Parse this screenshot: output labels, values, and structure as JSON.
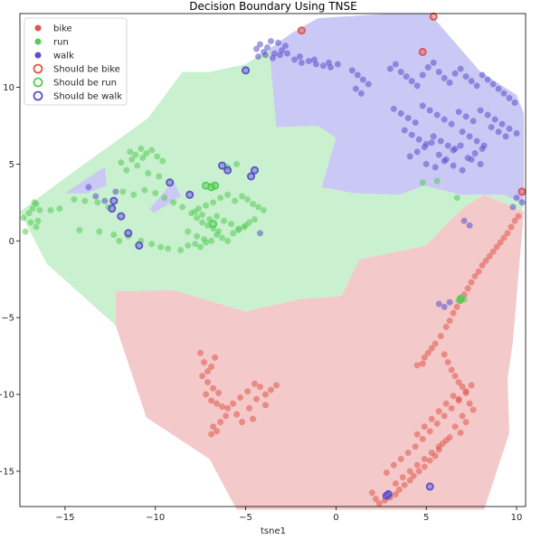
{
  "chart_data": {
    "type": "scatter",
    "title": "Decision Boundary Using TNSE",
    "xlabel": "tsne1",
    "ylabel": "",
    "xlim": [
      -17.5,
      10.5
    ],
    "ylim": [
      -17.3,
      14.8
    ],
    "x_ticks": [
      -15,
      -10,
      -5,
      0,
      5,
      10
    ],
    "y_ticks": [
      -15,
      -10,
      -5,
      0,
      5,
      10
    ],
    "x_tick_labels": [
      "−15",
      "−10",
      "−5",
      "0",
      "5",
      "10"
    ],
    "y_tick_labels": [
      "−15",
      "−10",
      "−5",
      "0",
      "5",
      "10"
    ],
    "legend_position": "top-left",
    "colors": {
      "bike": "#e0554d",
      "run": "#55cc55",
      "walk": "#5a50cc"
    },
    "regions": [
      {
        "class": "bike",
        "color": "#f4c9c9",
        "polygon": [
          [
            -12.2,
            -3.3
          ],
          [
            -9,
            -3.2
          ],
          [
            -5,
            -4.6
          ],
          [
            -2,
            -3.8
          ],
          [
            0.3,
            -3.6
          ],
          [
            1.3,
            -1.2
          ],
          [
            5,
            -0.3
          ],
          [
            6.2,
            1.2
          ],
          [
            7.2,
            2.3
          ],
          [
            8.2,
            3
          ],
          [
            9.6,
            2.3
          ],
          [
            10.4,
            1.9
          ],
          [
            9.8,
            -6.5
          ],
          [
            9.5,
            -9
          ],
          [
            9.6,
            -12.5
          ],
          [
            8.2,
            -17.5
          ],
          [
            -5.5,
            -17.5
          ],
          [
            -7,
            -14.2
          ],
          [
            -10.5,
            -11.5
          ],
          [
            -12.2,
            -5.5
          ]
        ]
      },
      {
        "class": "run",
        "color": "#c9f0cf",
        "polygon": [
          [
            -17.5,
            1.9
          ],
          [
            -15,
            4.1
          ],
          [
            -10.4,
            8
          ],
          [
            -8.5,
            11
          ],
          [
            -7,
            11
          ],
          [
            -5,
            11.5
          ],
          [
            -3.7,
            12.5
          ],
          [
            -3.3,
            7.4
          ],
          [
            -1,
            7.5
          ],
          [
            0,
            6.7
          ],
          [
            -0.8,
            3.5
          ],
          [
            1,
            3.1
          ],
          [
            3.5,
            3
          ],
          [
            4.9,
            3.6
          ],
          [
            6.9,
            3
          ],
          [
            9.3,
            3
          ],
          [
            10.4,
            2.4
          ],
          [
            10.3,
            1.9
          ],
          [
            9.6,
            2.3
          ],
          [
            8.2,
            3
          ],
          [
            7.2,
            2.3
          ],
          [
            6.2,
            1.2
          ],
          [
            5,
            -0.3
          ],
          [
            1.3,
            -1.2
          ],
          [
            0.3,
            -3.6
          ],
          [
            -2,
            -3.8
          ],
          [
            -5,
            -4.6
          ],
          [
            -9,
            -3.2
          ],
          [
            -12.2,
            -3.3
          ],
          [
            -12.2,
            -5.5
          ],
          [
            -16,
            -1.5
          ]
        ]
      },
      {
        "class": "walk",
        "color": "#cac8f4",
        "polygon": [
          [
            -3.7,
            12.5
          ],
          [
            -2.5,
            13.5
          ],
          [
            -1,
            14.5
          ],
          [
            3,
            14.8
          ],
          [
            5.2,
            14.8
          ],
          [
            8,
            11
          ],
          [
            10,
            9.5
          ],
          [
            10.4,
            8.3
          ],
          [
            10.4,
            2.4
          ],
          [
            9.3,
            3
          ],
          [
            6.9,
            3
          ],
          [
            4.9,
            3.6
          ],
          [
            3.5,
            3
          ],
          [
            1,
            3.1
          ],
          [
            -0.8,
            3.5
          ],
          [
            0,
            6.7
          ],
          [
            -1,
            7.5
          ],
          [
            -3.3,
            7.4
          ]
        ]
      },
      {
        "class": "walk",
        "color": "#cac8f4",
        "polygon": [
          [
            -15,
            3.1
          ],
          [
            -12.8,
            4.8
          ],
          [
            -12.7,
            3.6
          ],
          [
            -13.8,
            3.1
          ]
        ]
      },
      {
        "class": "walk",
        "color": "#cac8f4",
        "polygon": [
          [
            -10.3,
            2.1
          ],
          [
            -9,
            3.9
          ],
          [
            -8.6,
            2.9
          ],
          [
            -10.1,
            1.8
          ]
        ]
      }
    ],
    "series": [
      {
        "name": "bike",
        "color": "#e0554d",
        "x": [
          -7.5,
          -7.3,
          -7.1,
          -6.9,
          -6.7,
          -7.4,
          -7.1,
          -6.8,
          -6.5,
          -6.9,
          -7.2,
          -6.6,
          -6.3,
          -6.0,
          -5.7,
          -5.3,
          -4.9,
          -4.5,
          -4.2,
          -3.9,
          -3.6,
          -3.3,
          -4.8,
          -5.5,
          -5.2,
          -4.6,
          -6.1,
          -6.4,
          -6.8,
          -6.6,
          -6.9,
          -4.4,
          -3.9,
          4.5,
          4.8,
          4.9,
          5.1,
          5.3,
          5.5,
          5.8,
          6.1,
          6.3,
          6.5,
          6.7,
          6.9,
          7.1,
          7.3,
          7.5,
          7.7,
          7.9,
          8.1,
          8.3,
          8.5,
          8.7,
          8.9,
          9.1,
          9.3,
          9.5,
          9.7,
          9.9,
          10.1,
          6.0,
          6.2,
          6.4,
          6.6,
          6.8,
          7.0,
          7.2,
          6.8,
          7.4,
          7.6,
          7.0,
          7.2,
          6.6,
          6.9,
          6.3,
          5.9,
          5.7,
          5.5,
          5.2,
          4.9,
          4.6,
          4.3,
          4.1,
          3.8,
          3.5,
          3.3,
          3.0,
          2.7,
          2.4,
          2.2,
          2.0,
          2.8,
          3.2,
          3.6,
          4.0,
          4.4,
          4.8,
          5.2,
          5.6,
          6.0,
          6.4,
          6.8,
          7.2,
          7.5,
          6.5,
          6.1,
          5.7,
          5.3,
          4.9,
          4.5,
          3.3,
          3.7,
          4.1,
          4.5,
          4.9,
          5.3,
          5.7,
          6.1
        ],
        "y": [
          -7.3,
          -7.9,
          -8.5,
          -8.2,
          -7.6,
          -8.8,
          -9.2,
          -9.6,
          -9.9,
          -10.4,
          -10.0,
          -10.6,
          -10.8,
          -10.9,
          -10.6,
          -10.2,
          -9.8,
          -9.3,
          -9.5,
          -10.0,
          -9.7,
          -9.4,
          -10.9,
          -11.3,
          -11.8,
          -11.6,
          -11.4,
          -11.8,
          -12.1,
          -12.4,
          -12.6,
          -10.3,
          -10.7,
          -8.1,
          -8.0,
          -7.6,
          -7.3,
          -7.0,
          -6.7,
          -6.2,
          -5.6,
          -5.2,
          -4.7,
          -4.3,
          -3.9,
          -3.5,
          -3.1,
          -2.7,
          -2.3,
          -2.0,
          -1.6,
          -1.3,
          -1.0,
          -0.7,
          -0.4,
          -0.1,
          0.2,
          0.5,
          0.9,
          1.3,
          1.6,
          -7.4,
          -7.9,
          -8.4,
          -8.8,
          -9.2,
          -9.5,
          -9.9,
          -10.3,
          -10.6,
          -11.0,
          -11.4,
          -11.8,
          -12.1,
          -12.5,
          -12.8,
          -13.2,
          -13.6,
          -14.0,
          -14.3,
          -14.7,
          -15.0,
          -15.3,
          -15.6,
          -15.9,
          -16.2,
          -16.5,
          -16.7,
          -16.9,
          -17.1,
          -16.8,
          -16.4,
          -15.1,
          -14.6,
          -14.2,
          -13.8,
          -13.4,
          -12.9,
          -12.4,
          -11.9,
          -11.4,
          -10.9,
          -10.4,
          -9.8,
          -9.4,
          -10.1,
          -10.6,
          -11.1,
          -11.6,
          -12.1,
          -12.6,
          -15.8,
          -15.4,
          -15.0,
          -14.6,
          -14.2,
          -13.8,
          -13.4,
          -13.0
        ]
      },
      {
        "name": "run",
        "color": "#55cc55",
        "x": [
          -17.3,
          -17.0,
          -16.8,
          -16.6,
          -16.4,
          -16.9,
          -16.6,
          -17.2,
          -16.5,
          -16.7,
          -15.8,
          -15.3,
          -14.5,
          -13.9,
          -13.2,
          -12.6,
          -11.9,
          -11.3,
          -10.7,
          -11.4,
          -11.1,
          -10.8,
          -10.5,
          -10.2,
          -9.9,
          -9.6,
          -11.6,
          -11.0,
          -10.4,
          -9.8,
          -11.8,
          -11.2,
          -10.6,
          -10.0,
          -9.5,
          -9.0,
          -8.5,
          -8.0,
          -7.7,
          -7.4,
          -7.1,
          -6.8,
          -6.5,
          -7.7,
          -7.3,
          -6.9,
          -6.6,
          -6.3,
          -6.0,
          -5.7,
          -5.4,
          -5.1,
          -4.8,
          -4.5,
          -7.6,
          -7.2,
          -6.8,
          -6.4,
          -6.0,
          -5.6,
          -5.2,
          -4.9,
          -4.6,
          -4.3,
          -4.0,
          -7.8,
          -7.4,
          -7.0,
          -6.6,
          -6.2,
          -5.8,
          -5.4,
          -5.0,
          -8.2,
          -7.8,
          -7.5,
          -7.2,
          -8.6,
          -8.2,
          -9.3,
          -9.7,
          -10.2,
          -10.8,
          -11.5,
          -12.3,
          -13.1,
          -14.2,
          -12.0,
          -6.0,
          -5.5,
          4.8,
          5.6,
          6.7,
          6.9,
          7.1,
          6.8
        ],
        "y": [
          1.5,
          1.8,
          2.1,
          2.4,
          2.0,
          1.2,
          0.9,
          0.6,
          1.3,
          2.5,
          2.0,
          2.1,
          2.7,
          2.6,
          2.5,
          2.2,
          5.1,
          5.3,
          5.4,
          5.8,
          5.6,
          6.0,
          5.7,
          5.9,
          5.5,
          5.2,
          4.6,
          4.9,
          4.4,
          4.2,
          3.2,
          3.0,
          3.3,
          3.1,
          2.8,
          2.5,
          2.2,
          1.8,
          1.5,
          1.2,
          1.0,
          0.8,
          0.6,
          0.3,
          0.1,
          0.0,
          0.4,
          0.2,
          0.0,
          0.5,
          0.7,
          0.9,
          1.2,
          1.4,
          2.1,
          2.3,
          2.5,
          2.8,
          3.0,
          2.6,
          2.9,
          2.7,
          2.4,
          2.2,
          2.0,
          1.9,
          1.7,
          1.4,
          1.6,
          1.3,
          1.1,
          0.8,
          1.0,
          0.6,
          -0.2,
          -0.4,
          -0.1,
          -0.6,
          -0.3,
          -0.5,
          -0.4,
          -0.2,
          0.0,
          0.3,
          0.4,
          0.6,
          0.7,
          0.0,
          4.8,
          5.0,
          3.8,
          3.9,
          2.8,
          -3.7,
          -3.8,
          -3.9
        ]
      },
      {
        "name": "walk",
        "color": "#5a50cc",
        "x": [
          -4.4,
          -4.2,
          -4.0,
          -3.8,
          -3.6,
          -3.4,
          -3.2,
          -3.0,
          -2.8,
          -4.3,
          -3.9,
          -3.5,
          -3.1,
          -2.7,
          -2.3,
          -1.9,
          -1.5,
          -1.1,
          -0.7,
          -0.3,
          0.1,
          -2.0,
          -1.2,
          -0.4,
          0.9,
          1.2,
          1.5,
          1.8,
          1.1,
          1.4,
          3.0,
          3.3,
          3.6,
          3.9,
          4.2,
          4.5,
          4.8,
          5.1,
          5.4,
          5.7,
          6.0,
          6.3,
          6.6,
          6.9,
          7.2,
          7.5,
          7.8,
          8.1,
          8.4,
          8.7,
          9.0,
          9.3,
          9.6,
          9.9,
          3.2,
          3.6,
          4.0,
          4.4,
          4.8,
          5.2,
          5.6,
          6.0,
          6.4,
          6.8,
          7.2,
          7.6,
          8.0,
          8.4,
          8.8,
          9.2,
          9.6,
          10.0,
          3.8,
          4.2,
          4.6,
          5.0,
          5.4,
          5.8,
          6.2,
          6.6,
          7.0,
          7.4,
          7.8,
          8.2,
          8.6,
          9.0,
          9.4,
          4.1,
          4.5,
          4.9,
          5.3,
          5.7,
          6.1,
          6.5,
          6.9,
          7.3,
          7.7,
          8.1,
          5.0,
          5.5,
          6.0,
          6.5,
          7.0,
          7.5,
          8.0,
          10.0,
          10.3,
          9.8,
          -13.7,
          -13.3,
          -12.8,
          -12.2,
          -4.2,
          6.0,
          6.3,
          5.7,
          7.1,
          7.4
        ],
        "y": [
          12.5,
          12.8,
          12.3,
          12.6,
          13.0,
          12.2,
          12.9,
          12.4,
          12.7,
          12.0,
          12.1,
          11.9,
          12.1,
          12.2,
          11.8,
          11.6,
          11.7,
          11.5,
          11.4,
          11.3,
          11.5,
          12.0,
          11.8,
          11.6,
          11.1,
          10.8,
          10.5,
          10.2,
          9.9,
          9.6,
          11.2,
          11.5,
          11.0,
          10.7,
          10.4,
          10.1,
          10.8,
          11.3,
          11.6,
          11.0,
          10.6,
          10.3,
          10.9,
          11.2,
          10.7,
          10.4,
          10.1,
          10.8,
          10.5,
          10.2,
          9.9,
          9.6,
          9.3,
          9.0,
          8.6,
          8.3,
          8.0,
          7.7,
          8.8,
          8.5,
          8.2,
          7.9,
          7.6,
          8.4,
          8.1,
          7.8,
          8.5,
          8.2,
          7.9,
          7.6,
          7.3,
          7.0,
          7.2,
          6.9,
          6.6,
          6.3,
          6.8,
          6.5,
          6.2,
          6.0,
          7.1,
          6.8,
          6.5,
          6.2,
          7.4,
          7.1,
          6.8,
          5.5,
          5.8,
          6.1,
          6.4,
          5.6,
          5.3,
          5.9,
          6.2,
          5.4,
          5.7,
          6.0,
          5.0,
          4.8,
          5.2,
          4.9,
          4.6,
          5.3,
          5.0,
          2.8,
          2.5,
          2.2,
          3.5,
          2.9,
          2.6,
          3.2,
          0.5,
          -4.3,
          -4.0,
          -4.1,
          1.3,
          1.0
        ]
      }
    ],
    "misclassified": [
      {
        "name": "Should be bike",
        "color": "#e0554d",
        "x": [
          -1.9,
          4.8,
          5.4,
          10.3
        ],
        "y": [
          13.7,
          12.3,
          14.6,
          3.2
        ]
      },
      {
        "name": "Should be run",
        "color": "#55cc55",
        "x": [
          -7.2,
          -6.9,
          -6.7,
          -6.8,
          6.9
        ],
        "y": [
          3.6,
          3.5,
          3.6,
          1.1,
          -3.8
        ]
      },
      {
        "name": "Should be walk",
        "color": "#5a50cc",
        "x": [
          -5.0,
          -9.2,
          -8.1,
          -6.3,
          -6.0,
          -4.5,
          -4.7,
          -12.3,
          -12.4,
          -11.9,
          -11.5,
          -10.9,
          5.2,
          2.9,
          2.8
        ],
        "y": [
          11.1,
          3.8,
          3.0,
          4.9,
          4.6,
          4.6,
          4.2,
          2.6,
          2.1,
          1.6,
          0.5,
          -0.3,
          -16.0,
          -16.5,
          -16.6
        ]
      }
    ]
  }
}
